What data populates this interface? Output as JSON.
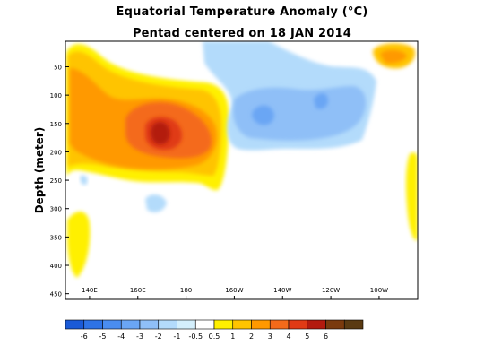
{
  "chart_data": {
    "type": "heatmap",
    "title": "Equatorial Temperature Anomaly (°C)",
    "subtitle": "Pentad centered on 18 JAN 2014",
    "ylabel": "Depth (meter)",
    "xlabel": "",
    "x_ticks": [
      "140E",
      "160E",
      "180",
      "160W",
      "140W",
      "120W",
      "100W"
    ],
    "x_tick_lon": [
      140,
      160,
      180,
      200,
      220,
      240,
      260
    ],
    "xlim_lon": [
      130,
      276
    ],
    "y_ticks": [
      50,
      100,
      150,
      200,
      250,
      300,
      350,
      400,
      450
    ],
    "ylim": [
      5,
      460
    ],
    "colorbar": {
      "labels": [
        "-6",
        "-5",
        "-4",
        "-3",
        "-2",
        "-1",
        "-0.5",
        "0.5",
        "1",
        "2",
        "3",
        "4",
        "5",
        "6"
      ],
      "colors": [
        "#1a5ad7",
        "#2e73e6",
        "#4a8df0",
        "#6aa6f4",
        "#8fbff7",
        "#b3dbfb",
        "#d4effc",
        "#ffffff",
        "#fff000",
        "#ffc400",
        "#ff9900",
        "#f46a1a",
        "#e03a15",
        "#b31a0e",
        "#7a3a0e",
        "#5a3a12"
      ]
    },
    "anomaly_regions": [
      {
        "level": "0.5",
        "lon": [
          130,
          185
        ],
        "depth": [
          30,
          230
        ]
      },
      {
        "level": "1",
        "lon": [
          131,
          180
        ],
        "depth": [
          60,
          210
        ]
      },
      {
        "level": "2",
        "lon": [
          162,
          190
        ],
        "depth": [
          110,
          200
        ]
      },
      {
        "level": "3",
        "lon": [
          165,
          185
        ],
        "depth": [
          120,
          185
        ]
      },
      {
        "level": "4",
        "lon": [
          175,
          180
        ],
        "depth": [
          140,
          165
        ]
      },
      {
        "level": "5",
        "lon": [
          170,
          175
        ],
        "depth": [
          145,
          160
        ]
      },
      {
        "level": "-0.5",
        "lon": [
          196,
          246
        ],
        "depth": [
          40,
          210
        ]
      },
      {
        "level": "-1",
        "lon": [
          208,
          251
        ],
        "depth": [
          90,
          170
        ]
      },
      {
        "level": "-2",
        "lon": [
          214,
          224
        ],
        "depth": [
          120,
          150
        ]
      },
      {
        "level": "1",
        "lon": [
          258,
          272
        ],
        "depth": [
          35,
          55
        ]
      },
      {
        "level": "0.5",
        "lon": [
          131,
          135
        ],
        "depth": [
          300,
          400
        ]
      },
      {
        "level": "0.5",
        "lon": [
          271,
          276
        ],
        "depth": [
          170,
          350
        ]
      }
    ]
  }
}
